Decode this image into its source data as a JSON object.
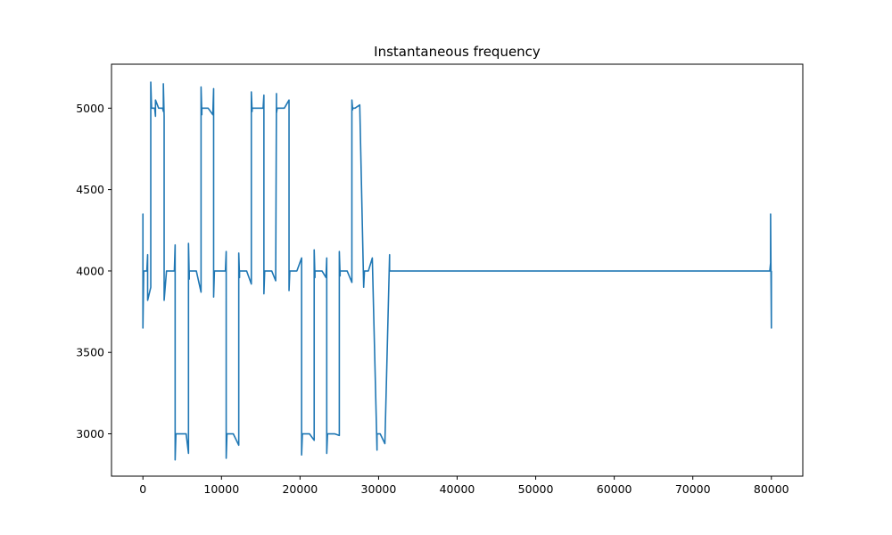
{
  "chart_data": {
    "type": "line",
    "title": "Instantaneous frequency",
    "xlabel": "",
    "ylabel": "",
    "xlim": [
      -4000,
      84000
    ],
    "ylim": [
      2740,
      5270
    ],
    "xticks": [
      0,
      10000,
      20000,
      30000,
      40000,
      50000,
      60000,
      70000,
      80000
    ],
    "yticks": [
      3000,
      3500,
      4000,
      4500,
      5000
    ],
    "grid": false,
    "legend": "none",
    "series": [
      {
        "color": "#1f77b4",
        "x": [
          0,
          0,
          0,
          100,
          500,
          600,
          600,
          1000,
          1000,
          1100,
          1100,
          1500,
          1600,
          1600,
          2000,
          2500,
          2600,
          2600,
          2700,
          2700,
          3000,
          3500,
          4000,
          4100,
          4100,
          4200,
          4200,
          4500,
          5000,
          5500,
          5800,
          5800,
          5900,
          5900,
          6200,
          6800,
          7400,
          7400,
          7500,
          7500,
          7800,
          8300,
          8900,
          9000,
          9000,
          9100,
          9100,
          9500,
          10000,
          10500,
          10600,
          10600,
          10700,
          10700,
          11000,
          11500,
          12200,
          12200,
          12300,
          12300,
          12600,
          13200,
          13800,
          13800,
          13900,
          13900,
          14200,
          14800,
          15300,
          15400,
          15400,
          15500,
          15500,
          15800,
          16400,
          16900,
          17000,
          17000,
          17100,
          17100,
          17500,
          18000,
          18600,
          18600,
          18700,
          18700,
          19000,
          19600,
          20200,
          20200,
          20300,
          20300,
          20600,
          21200,
          21800,
          21800,
          21900,
          21900,
          22200,
          22800,
          23300,
          23400,
          23400,
          23500,
          23500,
          23800,
          24400,
          25000,
          25000,
          25100,
          25100,
          25400,
          26000,
          26600,
          26600,
          26700,
          26700,
          27000,
          27600,
          28100,
          28200,
          28200,
          28300,
          28300,
          28700,
          29200,
          29800,
          29800,
          29900,
          29900,
          30200,
          30800,
          31400,
          31400,
          31500,
          31500,
          35000,
          45000,
          55000,
          65000,
          75000,
          79000,
          79800,
          79900,
          79900,
          80000,
          80000
        ],
        "y": [
          4000,
          4350,
          3650,
          4000,
          4000,
          4100,
          3820,
          3900,
          5160,
          5000,
          5000,
          5000,
          4950,
          5050,
          5000,
          5000,
          4980,
          5150,
          4950,
          3820,
          4000,
          4000,
          4000,
          4160,
          2840,
          3000,
          3000,
          3000,
          3000,
          3000,
          2880,
          4170,
          3950,
          4000,
          4000,
          4000,
          3870,
          5130,
          4960,
          5000,
          5000,
          5000,
          4960,
          5120,
          3840,
          4000,
          4000,
          4000,
          4000,
          4000,
          4120,
          2850,
          3000,
          3000,
          3000,
          3000,
          2930,
          4110,
          3960,
          4000,
          4000,
          4000,
          3920,
          5100,
          4980,
          5000,
          5000,
          5000,
          5000,
          5080,
          3860,
          4000,
          4000,
          4000,
          4000,
          3940,
          5090,
          4970,
          5000,
          5000,
          5000,
          5000,
          5050,
          3880,
          4000,
          4000,
          4000,
          4000,
          4080,
          2870,
          3000,
          3000,
          3000,
          3000,
          2960,
          4130,
          3960,
          4000,
          4000,
          4000,
          3960,
          4080,
          2880,
          3000,
          3000,
          3000,
          3000,
          2990,
          4120,
          3970,
          4000,
          4000,
          4000,
          3930,
          5050,
          4990,
          5000,
          5000,
          5020,
          3900,
          4000,
          4000,
          4000,
          4000,
          4000,
          4080,
          2900,
          3000,
          3000,
          3000,
          3000,
          2940,
          4100,
          4000,
          4000,
          4000,
          4000,
          4000,
          4000,
          4000,
          4000,
          4000,
          4000,
          4050,
          4350,
          3650,
          4000
        ]
      }
    ]
  }
}
